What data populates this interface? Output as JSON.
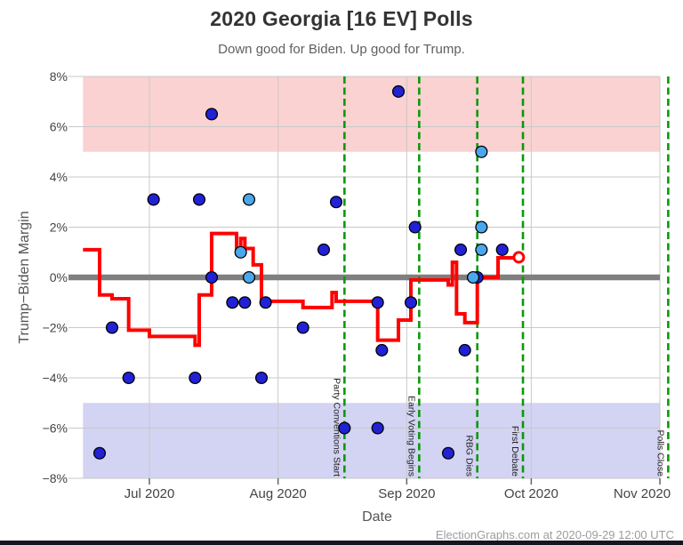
{
  "header": {
    "title": "2020 Georgia [16 EV] Polls",
    "subtitle": "Down good for Biden. Up good for Trump."
  },
  "footer": {
    "credit": "ElectionGraphs.com at 2020-09-29 12:00 UTC"
  },
  "chart_data": {
    "type": "scatter",
    "title": "2020 Georgia [16 EV] Polls",
    "subtitle": "Down good for Biden. Up good for Trump.",
    "xlabel": "Date",
    "ylabel": "Trump−Biden Margin",
    "ylim": [
      -8,
      8
    ],
    "grid": true,
    "y_ticks": [
      {
        "label": "8%",
        "value": 8
      },
      {
        "label": "6%",
        "value": 6
      },
      {
        "label": "4%",
        "value": 4
      },
      {
        "label": "2%",
        "value": 2
      },
      {
        "label": "0%",
        "value": 0
      },
      {
        "label": "−2%",
        "value": -2
      },
      {
        "label": "−4%",
        "value": -4
      },
      {
        "label": "−6%",
        "value": -6
      },
      {
        "label": "−8%",
        "value": -8
      }
    ],
    "x_ticks": [
      {
        "label": "Jul 2020",
        "date": "2020-07-01"
      },
      {
        "label": "Aug 2020",
        "date": "2020-08-01"
      },
      {
        "label": "Sep 2020",
        "date": "2020-09-01"
      },
      {
        "label": "Oct 2020",
        "date": "2020-10-01"
      },
      {
        "label": "Nov 2020",
        "date": "2020-11-01"
      }
    ],
    "bands": [
      {
        "name": "trump-lead-band",
        "from": 5,
        "to": 8,
        "color": "#fad2d2"
      },
      {
        "name": "biden-lead-band",
        "from": -8,
        "to": -5,
        "color": "#d3d3f3"
      }
    ],
    "events": [
      {
        "label": "Party Conventions Start",
        "date": "2020-08-17"
      },
      {
        "label": "Early Voting Begins",
        "date": "2020-09-04"
      },
      {
        "label": "RBG Dies",
        "date": "2020-09-18"
      },
      {
        "label": "First Debate",
        "date": "2020-09-29"
      },
      {
        "label": "Polls Close",
        "date": "2020-11-03"
      }
    ],
    "polls_dark": [
      [
        "2020-06-19",
        -7
      ],
      [
        "2020-06-22",
        -2
      ],
      [
        "2020-06-26",
        -4
      ],
      [
        "2020-07-02",
        3.1
      ],
      [
        "2020-07-12",
        -4
      ],
      [
        "2020-07-13",
        3.1
      ],
      [
        "2020-07-16",
        0
      ],
      [
        "2020-07-16",
        6.5
      ],
      [
        "2020-07-21",
        -1
      ],
      [
        "2020-07-24",
        -1
      ],
      [
        "2020-07-28",
        -4
      ],
      [
        "2020-07-29",
        -1
      ],
      [
        "2020-08-07",
        -2
      ],
      [
        "2020-08-12",
        1.1
      ],
      [
        "2020-08-15",
        3.0
      ],
      [
        "2020-08-17",
        -6
      ],
      [
        "2020-08-25",
        -1
      ],
      [
        "2020-08-25",
        -6
      ],
      [
        "2020-08-26",
        -2.9
      ],
      [
        "2020-08-30",
        7.4
      ],
      [
        "2020-09-02",
        -1
      ],
      [
        "2020-09-03",
        2
      ],
      [
        "2020-09-11",
        -7
      ],
      [
        "2020-09-14",
        1.1
      ],
      [
        "2020-09-15",
        -2.9
      ],
      [
        "2020-09-18",
        0
      ],
      [
        "2020-09-24",
        1.1
      ]
    ],
    "polls_light": [
      [
        "2020-07-23",
        1.0
      ],
      [
        "2020-07-25",
        0
      ],
      [
        "2020-07-25",
        3.1
      ],
      [
        "2020-09-17",
        0
      ],
      [
        "2020-09-19",
        2
      ],
      [
        "2020-09-19",
        5
      ],
      [
        "2020-09-19",
        1.1
      ]
    ],
    "average_line": [
      [
        "2020-06-15",
        1.1
      ],
      [
        "2020-06-19",
        1.1
      ],
      [
        "2020-06-19",
        -0.7
      ],
      [
        "2020-06-22",
        -0.7
      ],
      [
        "2020-06-22",
        -0.85
      ],
      [
        "2020-06-26",
        -0.85
      ],
      [
        "2020-06-26",
        -2.1
      ],
      [
        "2020-07-01",
        -2.1
      ],
      [
        "2020-07-01",
        -2.35
      ],
      [
        "2020-07-12",
        -2.35
      ],
      [
        "2020-07-12",
        -2.7
      ],
      [
        "2020-07-13",
        -2.7
      ],
      [
        "2020-07-13",
        -0.7
      ],
      [
        "2020-07-16",
        -0.7
      ],
      [
        "2020-07-16",
        1.75
      ],
      [
        "2020-07-22",
        1.75
      ],
      [
        "2020-07-22",
        0.95
      ],
      [
        "2020-07-23",
        0.95
      ],
      [
        "2020-07-23",
        1.55
      ],
      [
        "2020-07-24",
        1.55
      ],
      [
        "2020-07-24",
        1.15
      ],
      [
        "2020-07-26",
        1.15
      ],
      [
        "2020-07-26",
        0.5
      ],
      [
        "2020-07-28",
        0.5
      ],
      [
        "2020-07-28",
        -0.95
      ],
      [
        "2020-08-07",
        -0.95
      ],
      [
        "2020-08-07",
        -1.2
      ],
      [
        "2020-08-14",
        -1.2
      ],
      [
        "2020-08-14",
        -0.6
      ],
      [
        "2020-08-15",
        -0.6
      ],
      [
        "2020-08-15",
        -0.95
      ],
      [
        "2020-08-25",
        -0.95
      ],
      [
        "2020-08-25",
        -2.5
      ],
      [
        "2020-08-30",
        -2.5
      ],
      [
        "2020-08-30",
        -1.7
      ],
      [
        "2020-09-02",
        -1.7
      ],
      [
        "2020-09-02",
        -0.1
      ],
      [
        "2020-09-11",
        -0.1
      ],
      [
        "2020-09-11",
        -0.3
      ],
      [
        "2020-09-12",
        -0.3
      ],
      [
        "2020-09-12",
        0.6
      ],
      [
        "2020-09-13",
        0.6
      ],
      [
        "2020-09-13",
        -1.45
      ],
      [
        "2020-09-15",
        -1.45
      ],
      [
        "2020-09-15",
        -1.8
      ],
      [
        "2020-09-18",
        -1.8
      ],
      [
        "2020-09-18",
        0
      ],
      [
        "2020-09-23",
        0
      ],
      [
        "2020-09-23",
        0.78
      ],
      [
        "2020-09-27",
        0.78
      ]
    ],
    "endpoint": {
      "date": "2020-09-28",
      "value": 0.8
    },
    "colors": {
      "average": "#ff0000",
      "poll_dark": "#2121d6",
      "poll_light": "#4aa7ec",
      "dot_outline": "#000000",
      "zero_line": "#7f7f7f",
      "grid": "#c9c9c9",
      "event_line": "#0a990a",
      "tick": "#666666",
      "endpoint_fill": "#ffffff"
    }
  }
}
